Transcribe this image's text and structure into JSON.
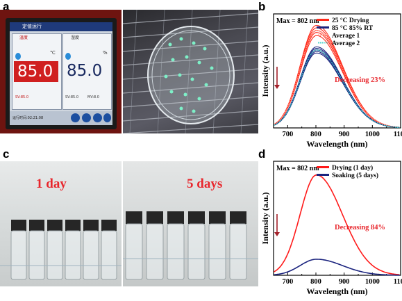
{
  "panel_labels": {
    "a": "a",
    "b": "b",
    "c": "c",
    "d": "d"
  },
  "photo_a": {
    "left_photo": {
      "title_cn": "定值运行",
      "temp_label": "温度",
      "temp_value": "85.0",
      "temp_unit": "℃",
      "temp_sub": "SV:85.0",
      "hum_label": "湿度",
      "hum_value": "85.0",
      "hum_unit": "%",
      "hum_sv": "SV:85.0",
      "hum_mv": "MV:8.0",
      "runtime": "运行时间:02:21:08"
    }
  },
  "photo_c": {
    "label_left": "1 day",
    "label_right": "5 days",
    "label_color": "#e8262c"
  },
  "chart_data": [
    {
      "panel": "b",
      "type": "line",
      "annotation_max": "Max = 802 nm",
      "annotation_decrease": "Decreasing 23%",
      "xlabel": "Wavelength (nm)",
      "ylabel": "Intensity (a.u.)",
      "xlim": [
        650,
        1100
      ],
      "x_ticks": [
        700,
        800,
        900,
        1000,
        1100
      ],
      "legend": [
        "25 °C Drying",
        "85 °C 85% RT",
        "Average 1",
        "Average 2"
      ],
      "series": [
        {
          "name": "25 °C Drying",
          "color": "#ff2a1a",
          "peak": 1.0,
          "center": 802,
          "width_left": 58,
          "width_right": 92,
          "replicates": [
            1.0,
            0.975,
            0.95,
            0.93,
            0.9
          ]
        },
        {
          "name": "85 °C 85% RT",
          "color": "#1a237e",
          "peak": 0.77,
          "center": 802,
          "width_left": 58,
          "width_right": 92,
          "replicates": [
            0.79,
            0.775,
            0.76,
            0.745,
            0.73
          ]
        },
        {
          "name": "Average 1",
          "color": "#ff9a8a",
          "peak": 0.95,
          "center": 802,
          "width_left": 58,
          "width_right": 92
        },
        {
          "name": "Average 2",
          "color": "#40d0c8",
          "peak": 0.76,
          "center": 802,
          "width_left": 58,
          "width_right": 92
        }
      ]
    },
    {
      "panel": "d",
      "type": "line",
      "annotation_max": "Max = 802 nm",
      "annotation_decrease": "Decreasing 84%",
      "xlabel": "Wavelength (nm)",
      "ylabel": "Intensity (a.u.)",
      "xlim": [
        650,
        1100
      ],
      "x_ticks": [
        700,
        800,
        900,
        1000,
        1100
      ],
      "legend": [
        "Drying (1 day)",
        "Soaking (5 days)"
      ],
      "series": [
        {
          "name": "Drying (1 day)",
          "color": "#ff1a1a",
          "peak": 1.0,
          "center": 802,
          "width_left": 58,
          "width_right": 92
        },
        {
          "name": "Soaking (5 days)",
          "color": "#1a237e",
          "peak": 0.16,
          "center": 802,
          "width_left": 58,
          "width_right": 92
        }
      ]
    }
  ]
}
